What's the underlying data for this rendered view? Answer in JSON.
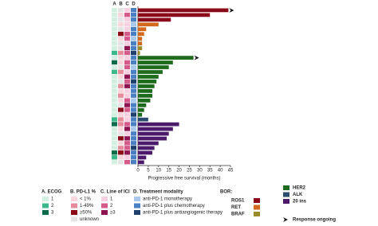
{
  "chart_data": {
    "type": "swimmer",
    "x_label": "Progressive free survival (months)",
    "xlim": [
      0,
      45
    ],
    "xticks": [
      0,
      5,
      10,
      15,
      20,
      25,
      30,
      35,
      40,
      45
    ],
    "column_labels": [
      "A",
      "B",
      "C",
      "D"
    ],
    "series": [
      {
        "name": "ROS1",
        "color": "#8b0a1a",
        "values": [
          44,
          35,
          16
        ],
        "ongoing": [
          true,
          false,
          false
        ]
      },
      {
        "name": "RET",
        "color": "#d2691e",
        "values": [
          10,
          4,
          3,
          2,
          2
        ],
        "ongoing": [
          false,
          false,
          false,
          false,
          false
        ]
      },
      {
        "name": "BRAF",
        "color": "#9a8a2a",
        "values": [
          2,
          1
        ],
        "ongoing": [
          false,
          false
        ]
      },
      {
        "name": "HER2",
        "color": "#1e6b1e",
        "values": [
          27,
          17,
          15,
          12,
          10,
          9,
          8,
          7,
          7,
          6,
          4,
          3,
          2
        ],
        "ongoing": [
          true,
          false,
          false,
          false,
          false,
          false,
          false,
          false,
          false,
          false,
          false,
          false,
          false
        ]
      },
      {
        "name": "ALK",
        "color": "#2b4a6e",
        "values": [
          5
        ],
        "ongoing": [
          false
        ]
      },
      {
        "name": "20 ins",
        "color": "#4b1a6b",
        "values": [
          20,
          17,
          15,
          14,
          10,
          8,
          7,
          4,
          3
        ],
        "ongoing": [
          false,
          false,
          false,
          false,
          false,
          false,
          false,
          false,
          false
        ]
      }
    ],
    "heatmap": [
      {
        "codes": [
          0,
          0,
          0,
          0,
          0,
          0,
          0,
          0,
          0,
          1,
          0,
          2,
          0,
          1,
          0,
          0,
          0,
          0,
          0,
          0,
          0,
          0,
          0,
          1,
          2,
          0,
          0,
          0,
          0,
          0,
          2,
          1,
          0
        ]
      },
      {
        "codes": [
          3,
          0,
          3,
          0,
          3,
          2,
          0,
          3,
          3,
          1,
          0,
          0,
          3,
          1,
          0,
          3,
          1,
          0,
          1,
          0,
          3,
          2,
          0,
          1,
          1,
          0,
          3,
          2,
          0,
          1,
          2,
          0,
          3
        ]
      },
      {
        "codes": [
          0,
          1,
          0,
          0,
          0,
          1,
          1,
          0,
          2,
          1,
          0,
          1,
          1,
          0,
          2,
          1,
          2,
          0,
          0,
          1,
          2,
          1,
          0,
          0,
          1,
          2,
          0,
          2,
          1,
          1,
          2,
          0,
          1
        ]
      },
      {
        "codes": [
          1,
          1,
          1,
          0,
          1,
          1,
          0,
          1,
          1,
          2,
          1,
          1,
          0,
          1,
          1,
          2,
          1,
          1,
          1,
          0,
          1,
          1,
          2,
          1,
          1,
          0,
          1,
          1,
          1,
          2,
          1,
          1,
          1
        ]
      }
    ],
    "legends": [
      {
        "title": "A. ECOG",
        "items": [
          {
            "label": "1",
            "color": "#d3efe2"
          },
          {
            "label": "2",
            "color": "#3cb88a"
          },
          {
            "label": "3",
            "color": "#0b6b4a"
          }
        ]
      },
      {
        "title": "B. PD-L1 %",
        "items": [
          {
            "label": "< 1%",
            "color": "#f9d5dc"
          },
          {
            "label": "1-49%",
            "color": "#e58c9c"
          },
          {
            "label": "≥50%",
            "color": "#8b0a1a"
          },
          {
            "label": "unknown",
            "color": "#e4e4e4"
          }
        ]
      },
      {
        "title": "C. Line of ICI",
        "items": [
          {
            "label": "1",
            "color": "#f6cfe0"
          },
          {
            "label": "2",
            "color": "#d45a8a"
          },
          {
            "label": "≥3",
            "color": "#8c1450"
          }
        ]
      },
      {
        "title": "D. Treatment modality",
        "items": [
          {
            "label": "anti-PD-1 monotherapy",
            "color": "#a8c8ec"
          },
          {
            "label": "anti-PD-1 plus chemotherapy",
            "color": "#4a7fc1"
          },
          {
            "label": "anti-PD-1 plus antiangiogenic therapy",
            "color": "#1f3f6d"
          }
        ]
      }
    ],
    "bor_title": "BOR:",
    "ongoing_label": "Response ongoing"
  }
}
